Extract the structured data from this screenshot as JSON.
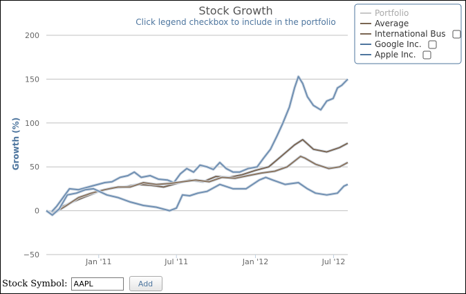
{
  "chart_data": {
    "type": "line",
    "title": "Stock Growth",
    "subtitle": "Click legend checkbox to include in the portfolio",
    "ylabel": "Growth (%)",
    "ylim": [
      -50,
      200
    ],
    "y_ticks": [
      "200",
      "150",
      "100",
      "50",
      "0",
      "−50"
    ],
    "y_tick_values": [
      200,
      150,
      100,
      50,
      0,
      -50
    ],
    "x_tick_labels": [
      "Jan '11",
      "Jul '11",
      "Jan '12",
      "Jul '12"
    ],
    "x_range": [
      "2010-09-01",
      "2012-08-03"
    ],
    "x_tick_dates": [
      "2011-01-01",
      "2011-07-01",
      "2012-01-01",
      "2012-07-01"
    ],
    "grid": "horizontal",
    "legend_placement": "top-right",
    "legend": [
      {
        "name": "Portfolio",
        "color": "#c8c8c8",
        "checkbox": false
      },
      {
        "name": "Average",
        "color": "#7a6552",
        "checkbox": false
      },
      {
        "name": "International Bus",
        "color": "#7a6552",
        "checkbox": true
      },
      {
        "name": "Google Inc.",
        "color": "#4d759e",
        "checkbox": true
      },
      {
        "name": "Apple Inc.",
        "color": "#4d759e",
        "checkbox": true
      }
    ],
    "series": [
      {
        "name": "Apple Inc.",
        "color": "#6f8fb2",
        "points": [
          [
            "2010-09-01",
            0
          ],
          [
            "2010-09-10",
            -3
          ],
          [
            "2010-09-25",
            5
          ],
          [
            "2010-10-10",
            15
          ],
          [
            "2010-10-25",
            25
          ],
          [
            "2010-11-15",
            24
          ],
          [
            "2010-12-15",
            28
          ],
          [
            "2011-01-15",
            32
          ],
          [
            "2011-02-01",
            33
          ],
          [
            "2011-02-20",
            38
          ],
          [
            "2011-03-10",
            40
          ],
          [
            "2011-03-25",
            44
          ],
          [
            "2011-04-10",
            38
          ],
          [
            "2011-05-01",
            40
          ],
          [
            "2011-05-20",
            36
          ],
          [
            "2011-06-10",
            35
          ],
          [
            "2011-06-25",
            32
          ],
          [
            "2011-07-10",
            42
          ],
          [
            "2011-07-25",
            48
          ],
          [
            "2011-08-10",
            44
          ],
          [
            "2011-08-25",
            52
          ],
          [
            "2011-09-10",
            50
          ],
          [
            "2011-09-25",
            47
          ],
          [
            "2011-10-10",
            55
          ],
          [
            "2011-10-25",
            48
          ],
          [
            "2011-11-10",
            44
          ],
          [
            "2011-11-25",
            44
          ],
          [
            "2011-12-15",
            48
          ],
          [
            "2012-01-05",
            50
          ],
          [
            "2012-01-20",
            60
          ],
          [
            "2012-02-05",
            70
          ],
          [
            "2012-02-20",
            85
          ],
          [
            "2012-03-05",
            100
          ],
          [
            "2012-03-20",
            118
          ],
          [
            "2012-04-01",
            140
          ],
          [
            "2012-04-10",
            153
          ],
          [
            "2012-04-20",
            145
          ],
          [
            "2012-05-01",
            130
          ],
          [
            "2012-05-15",
            120
          ],
          [
            "2012-06-01",
            115
          ],
          [
            "2012-06-15",
            125
          ],
          [
            "2012-06-30",
            128
          ],
          [
            "2012-07-10",
            140
          ],
          [
            "2012-07-20",
            143
          ],
          [
            "2012-08-03",
            150
          ]
        ]
      },
      {
        "name": "Average",
        "color": "#7a6552",
        "points": [
          [
            "2010-09-01",
            0
          ],
          [
            "2010-09-15",
            -3
          ],
          [
            "2010-10-10",
            5
          ],
          [
            "2010-11-01",
            10
          ],
          [
            "2010-12-01",
            16
          ],
          [
            "2011-01-01",
            22
          ],
          [
            "2011-02-01",
            26
          ],
          [
            "2011-03-01",
            27
          ],
          [
            "2011-04-01",
            30
          ],
          [
            "2011-05-01",
            29
          ],
          [
            "2011-06-01",
            27
          ],
          [
            "2011-07-01",
            31
          ],
          [
            "2011-08-01",
            35
          ],
          [
            "2011-09-01",
            33
          ],
          [
            "2011-10-01",
            39
          ],
          [
            "2011-11-01",
            38
          ],
          [
            "2011-12-01",
            41
          ],
          [
            "2012-01-01",
            46
          ],
          [
            "2012-02-01",
            50
          ],
          [
            "2012-03-01",
            62
          ],
          [
            "2012-04-01",
            75
          ],
          [
            "2012-04-20",
            81
          ],
          [
            "2012-05-15",
            70
          ],
          [
            "2012-06-15",
            67
          ],
          [
            "2012-07-15",
            72
          ],
          [
            "2012-08-03",
            77
          ]
        ]
      },
      {
        "name": "International Bus",
        "color": "#8a745f",
        "points": [
          [
            "2010-09-01",
            0
          ],
          [
            "2010-09-15",
            -4
          ],
          [
            "2010-10-15",
            5
          ],
          [
            "2010-11-15",
            15
          ],
          [
            "2010-12-15",
            20
          ],
          [
            "2011-01-15",
            24
          ],
          [
            "2011-02-15",
            27
          ],
          [
            "2011-03-15",
            27
          ],
          [
            "2011-04-15",
            32
          ],
          [
            "2011-05-15",
            30
          ],
          [
            "2011-06-15",
            31
          ],
          [
            "2011-07-15",
            33
          ],
          [
            "2011-08-15",
            35
          ],
          [
            "2011-09-15",
            33
          ],
          [
            "2011-10-15",
            38
          ],
          [
            "2011-11-15",
            37
          ],
          [
            "2011-12-15",
            40
          ],
          [
            "2012-01-15",
            43
          ],
          [
            "2012-02-15",
            45
          ],
          [
            "2012-03-15",
            50
          ],
          [
            "2012-04-15",
            62
          ],
          [
            "2012-04-25",
            60
          ],
          [
            "2012-05-20",
            53
          ],
          [
            "2012-06-20",
            48
          ],
          [
            "2012-07-15",
            50
          ],
          [
            "2012-08-03",
            55
          ]
        ]
      },
      {
        "name": "Google Inc.",
        "color": "#6f8fb2",
        "points": [
          [
            "2010-09-01",
            0
          ],
          [
            "2010-09-15",
            -5
          ],
          [
            "2010-10-01",
            2
          ],
          [
            "2010-10-20",
            18
          ],
          [
            "2010-11-10",
            20
          ],
          [
            "2010-12-01",
            24
          ],
          [
            "2010-12-20",
            25
          ],
          [
            "2011-01-20",
            18
          ],
          [
            "2011-02-15",
            15
          ],
          [
            "2011-03-15",
            10
          ],
          [
            "2011-04-15",
            6
          ],
          [
            "2011-05-15",
            4
          ],
          [
            "2011-06-15",
            0
          ],
          [
            "2011-07-01",
            3
          ],
          [
            "2011-07-15",
            18
          ],
          [
            "2011-08-01",
            17
          ],
          [
            "2011-08-20",
            20
          ],
          [
            "2011-09-10",
            22
          ],
          [
            "2011-10-10",
            30
          ],
          [
            "2011-11-10",
            25
          ],
          [
            "2011-12-10",
            25
          ],
          [
            "2012-01-10",
            35
          ],
          [
            "2012-01-25",
            38
          ],
          [
            "2012-02-10",
            35
          ],
          [
            "2012-03-10",
            30
          ],
          [
            "2012-04-10",
            32
          ],
          [
            "2012-05-01",
            25
          ],
          [
            "2012-05-20",
            20
          ],
          [
            "2012-06-15",
            18
          ],
          [
            "2012-07-10",
            20
          ],
          [
            "2012-07-25",
            28
          ],
          [
            "2012-08-03",
            30
          ]
        ]
      }
    ]
  },
  "form": {
    "label": "Stock Symbol:",
    "input_value": "AAPL",
    "button_label": "Add"
  }
}
